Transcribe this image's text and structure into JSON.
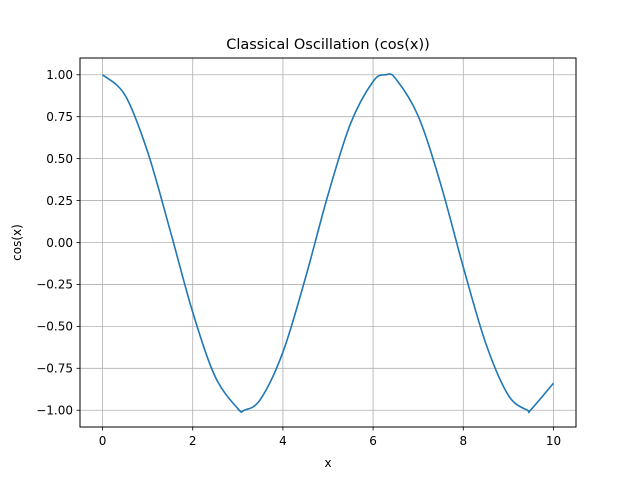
{
  "chart_data": {
    "type": "line",
    "title": "Classical Oscillation (cos(x))",
    "xlabel": "x",
    "ylabel": "cos(x)",
    "xlim": [
      -0.5,
      10.5
    ],
    "ylim": [
      -1.1,
      1.1
    ],
    "grid": true,
    "x_ticks": [
      0,
      2,
      4,
      6,
      8,
      10
    ],
    "x_tick_labels": [
      "0",
      "2",
      "4",
      "6",
      "8",
      "10"
    ],
    "y_ticks": [
      1.0,
      0.75,
      0.5,
      0.25,
      0.0,
      -0.25,
      -0.5,
      -0.75,
      -1.0
    ],
    "y_tick_labels": [
      "1.00",
      "0.75",
      "0.50",
      "0.25",
      "0.00",
      "−0.25",
      "−0.50",
      "−0.75",
      "−1.00"
    ],
    "series": [
      {
        "color": "#1f77b4",
        "x": [
          0,
          0.5,
          1,
          1.5,
          2,
          2.5,
          3,
          3.14,
          3.5,
          4,
          4.5,
          5,
          5.5,
          6,
          6.28,
          6.5,
          7,
          7.5,
          8,
          8.5,
          9,
          9.42,
          9.5,
          10
        ],
        "y": [
          1.0,
          0.878,
          0.54,
          0.071,
          -0.416,
          -0.801,
          -0.99,
          -1.0,
          -0.936,
          -0.654,
          -0.211,
          0.284,
          0.709,
          0.96,
          1.0,
          0.977,
          0.754,
          0.347,
          -0.146,
          -0.602,
          -0.911,
          -1.0,
          -0.997,
          -0.839
        ]
      }
    ]
  }
}
